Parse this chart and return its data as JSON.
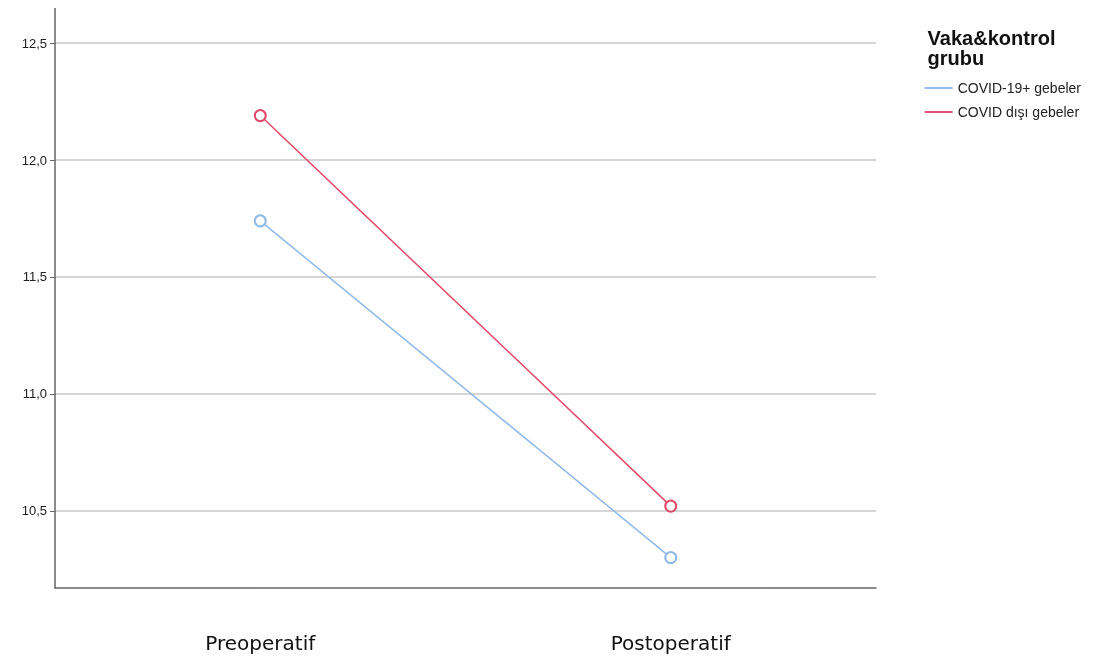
{
  "chart_data": {
    "type": "line",
    "categories": [
      "Preoperatif",
      "Postoperatif"
    ],
    "series": [
      {
        "name": "COVID-19+ gebeler",
        "color": "#8fb8ea",
        "values": [
          11.74,
          10.3
        ]
      },
      {
        "name": "COVID dışı gebeler",
        "color": "#e0486a",
        "values": [
          12.19,
          10.52
        ]
      }
    ],
    "ylim": [
      10.17,
      12.65
    ],
    "yticks": [
      {
        "value": 10.5,
        "label": "10,5"
      },
      {
        "value": 11,
        "label": "11,0"
      },
      {
        "value": 11.5,
        "label": "11,5"
      },
      {
        "value": 12,
        "label": "12,0"
      },
      {
        "value": 12.5,
        "label": "12,5"
      }
    ],
    "grid": "y",
    "legend": "top right",
    "legend_title": "Vaka&kontrol grubu",
    "marker": "circle",
    "line_style": "solid"
  }
}
